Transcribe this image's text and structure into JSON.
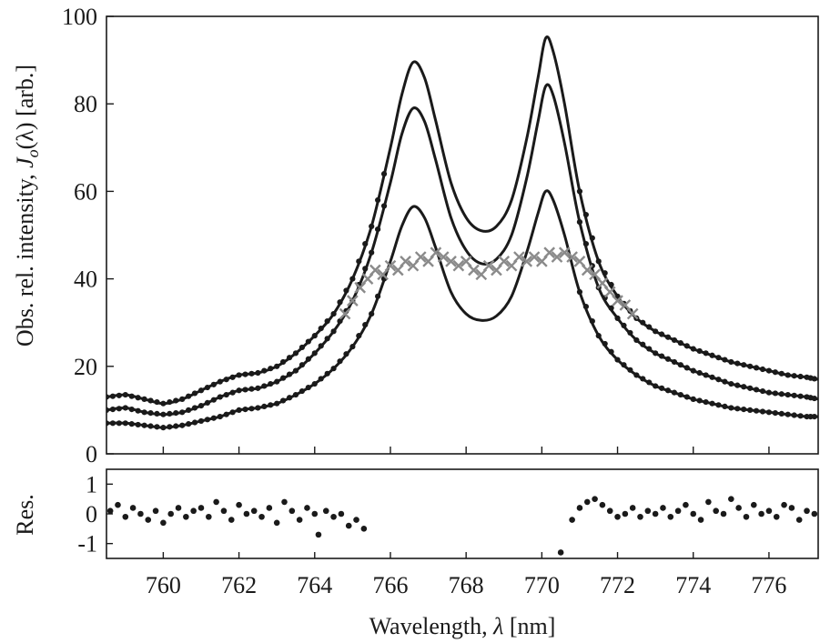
{
  "chart_data": [
    {
      "type": "line",
      "xlabel_prefix": "Wavelength, ",
      "xlabel_symbol": "λ",
      "xlabel_unit": " [nm]",
      "ylabel_prefix": "Obs. rel. intensity, ",
      "ylabel_J": "J",
      "ylabel_sub": "o",
      "ylabel_suffix": "(λ) [arb.]",
      "xlim": [
        758.5,
        777.3
      ],
      "ylim": [
        0,
        100
      ],
      "x_ticks": [
        760,
        762,
        764,
        766,
        768,
        770,
        772,
        774,
        776
      ],
      "y_ticks": [
        0,
        20,
        40,
        60,
        80,
        100
      ],
      "grid": false,
      "series": [
        {
          "style": "black line with dot markers",
          "color": "#1a1a1a",
          "x": [
            758.5,
            759.0,
            759.5,
            760.0,
            760.5,
            761.0,
            761.5,
            762.0,
            762.5,
            763.0,
            763.5,
            764.0,
            764.5,
            765.0,
            765.5,
            766.0,
            766.3,
            766.6,
            766.9,
            767.2,
            767.6,
            768.0,
            768.4,
            768.8,
            769.2,
            769.6,
            769.9,
            770.1,
            770.3,
            770.6,
            771.0,
            771.5,
            772.0,
            772.5,
            773.0,
            773.5,
            774.0,
            774.5,
            775.0,
            775.5,
            776.0,
            776.5,
            777.0,
            777.3
          ],
          "y": [
            13,
            13.5,
            12.5,
            11.5,
            12.5,
            14.5,
            16.5,
            18,
            18.5,
            20,
            23,
            27,
            32,
            40,
            52,
            70,
            82,
            89.5,
            86,
            76,
            62,
            54,
            51,
            52,
            58,
            72,
            86,
            95,
            92,
            80,
            60,
            44,
            36,
            31,
            28,
            26,
            24,
            22.5,
            21,
            20,
            19,
            18,
            17.5,
            17
          ]
        },
        {
          "style": "black line with dot markers",
          "color": "#1a1a1a",
          "x": [
            758.5,
            759.0,
            759.5,
            760.0,
            760.5,
            761.0,
            761.5,
            762.0,
            762.5,
            763.0,
            763.5,
            764.0,
            764.5,
            765.0,
            765.5,
            766.0,
            766.3,
            766.6,
            766.9,
            767.2,
            767.6,
            768.0,
            768.4,
            768.8,
            769.2,
            769.6,
            769.9,
            770.1,
            770.3,
            770.6,
            771.0,
            771.5,
            772.0,
            772.5,
            773.0,
            773.5,
            774.0,
            774.5,
            775.0,
            775.5,
            776.0,
            776.5,
            777.0,
            777.3
          ],
          "y": [
            10,
            10.5,
            9.5,
            9,
            9.5,
            11,
            13,
            14.5,
            15,
            16.5,
            19,
            23,
            28,
            35,
            46,
            62,
            73,
            79,
            76,
            67,
            54,
            46.5,
            43.5,
            44.5,
            50,
            63,
            76,
            84,
            82,
            71,
            53,
            38,
            31,
            26,
            23,
            21,
            19,
            17.5,
            16,
            15,
            14,
            13.5,
            13,
            12.5
          ]
        },
        {
          "style": "black line with dot markers",
          "color": "#1a1a1a",
          "x": [
            758.5,
            759.0,
            759.5,
            760.0,
            760.5,
            761.0,
            761.5,
            762.0,
            762.5,
            763.0,
            763.5,
            764.0,
            764.5,
            765.0,
            765.5,
            766.0,
            766.3,
            766.6,
            766.9,
            767.2,
            767.6,
            768.0,
            768.4,
            768.8,
            769.2,
            769.6,
            769.9,
            770.1,
            770.3,
            770.6,
            771.0,
            771.5,
            772.0,
            772.5,
            773.0,
            773.5,
            774.0,
            774.5,
            775.0,
            775.5,
            776.0,
            776.5,
            777.0,
            777.3
          ],
          "y": [
            7,
            7,
            6.5,
            6,
            6.5,
            7.5,
            8.5,
            10,
            10.5,
            11.5,
            13.5,
            16,
            19.5,
            24.5,
            32,
            44,
            52,
            56.5,
            54,
            47,
            37,
            32,
            30.5,
            31.5,
            36,
            46,
            55,
            60,
            58,
            50,
            37,
            27,
            21.5,
            18,
            15.5,
            14,
            12.5,
            11.5,
            10.5,
            10,
            9.5,
            9,
            8.5,
            8.5
          ]
        },
        {
          "style": "gray x markers",
          "color": "#8a8a8a",
          "x": [
            764.8,
            765.0,
            765.2,
            765.4,
            765.6,
            765.8,
            766.0,
            766.2,
            766.4,
            766.6,
            766.8,
            767.0,
            767.2,
            767.4,
            767.6,
            767.8,
            768.0,
            768.2,
            768.4,
            768.6,
            768.8,
            769.0,
            769.2,
            769.4,
            769.6,
            769.8,
            770.0,
            770.2,
            770.4,
            770.6,
            770.8,
            771.0,
            771.2,
            771.4,
            771.6,
            771.8,
            772.0,
            772.2,
            772.4
          ],
          "y": [
            32,
            35,
            38,
            40,
            42,
            41,
            43,
            42,
            44,
            43,
            45,
            44,
            46,
            45,
            44,
            43,
            44,
            42,
            41,
            43,
            42,
            44,
            43,
            45,
            44,
            45,
            44,
            46,
            45,
            46,
            45,
            44,
            42,
            41,
            39,
            37,
            35,
            34,
            32
          ]
        }
      ]
    },
    {
      "type": "scatter",
      "ylabel": "Res.",
      "xlim": [
        758.5,
        777.3
      ],
      "ylim": [
        -1.5,
        1.5
      ],
      "y_ticks": [
        -1,
        0,
        1
      ],
      "y_tick_labels": [
        "-1",
        "0",
        "1"
      ],
      "series": [
        {
          "style": "black dots",
          "color": "#1a1a1a",
          "x": [
            758.6,
            758.8,
            759.0,
            759.2,
            759.4,
            759.6,
            759.8,
            760.0,
            760.2,
            760.4,
            760.6,
            760.8,
            761.0,
            761.2,
            761.4,
            761.6,
            761.8,
            762.0,
            762.2,
            762.4,
            762.6,
            762.8,
            763.0,
            763.2,
            763.4,
            763.6,
            763.8,
            764.0,
            764.1,
            764.3,
            764.5,
            764.7,
            764.9,
            765.1,
            765.3,
            770.5,
            770.8,
            771.0,
            771.2,
            771.4,
            771.6,
            771.8,
            772.0,
            772.2,
            772.4,
            772.6,
            772.8,
            773.0,
            773.2,
            773.4,
            773.6,
            773.8,
            774.0,
            774.2,
            774.4,
            774.6,
            774.8,
            775.0,
            775.2,
            775.4,
            775.6,
            775.8,
            776.0,
            776.2,
            776.4,
            776.6,
            776.8,
            777.0,
            777.2
          ],
          "y": [
            0.1,
            0.3,
            -0.1,
            0.2,
            0.0,
            -0.2,
            0.1,
            -0.3,
            0.0,
            0.2,
            -0.1,
            0.1,
            0.2,
            -0.1,
            0.4,
            0.1,
            -0.2,
            0.3,
            0.0,
            0.1,
            -0.1,
            0.2,
            -0.3,
            0.4,
            0.1,
            -0.2,
            0.2,
            0.0,
            -0.7,
            0.1,
            -0.1,
            0.0,
            -0.4,
            -0.2,
            -0.5,
            -1.3,
            -0.2,
            0.2,
            0.4,
            0.5,
            0.3,
            0.1,
            -0.1,
            0.0,
            0.2,
            -0.1,
            0.1,
            0.0,
            0.2,
            -0.1,
            0.1,
            0.3,
            0.0,
            -0.2,
            0.4,
            0.1,
            0.0,
            0.5,
            0.2,
            -0.1,
            0.3,
            0.0,
            0.1,
            -0.1,
            0.3,
            0.2,
            -0.2,
            0.1,
            0.0
          ]
        }
      ]
    }
  ]
}
